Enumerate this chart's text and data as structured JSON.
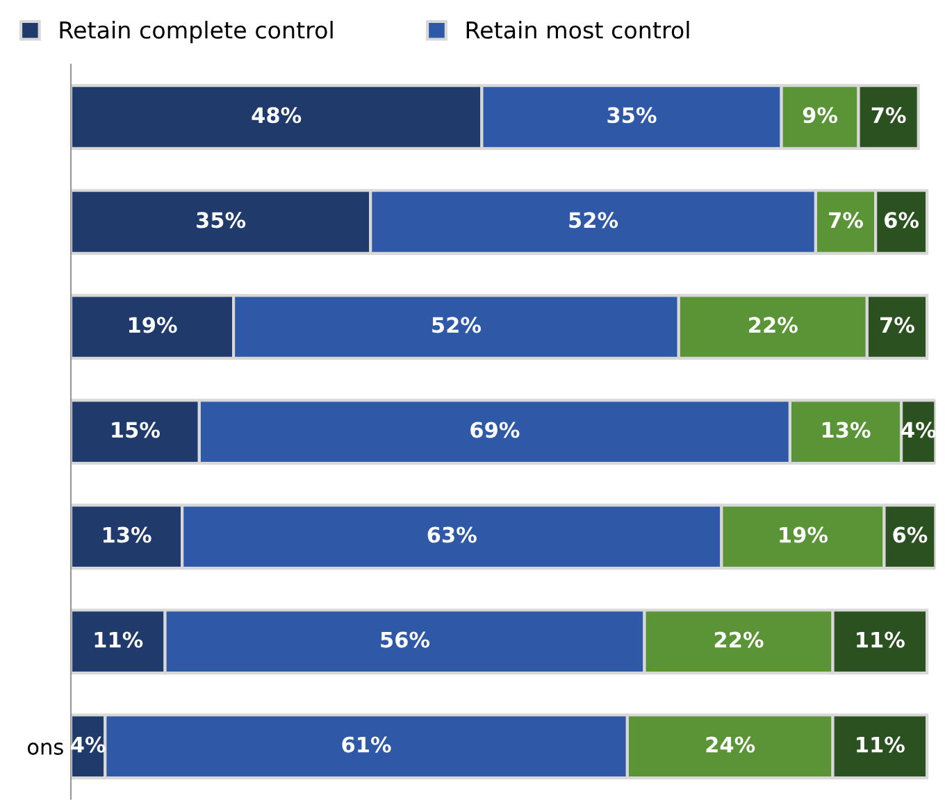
{
  "chart_data": {
    "type": "bar",
    "orientation": "horizontal",
    "stacked": true,
    "categories": [
      null,
      null,
      null,
      null,
      null,
      null,
      "ons"
    ],
    "xlim": [
      0,
      101
    ],
    "tick_labels": "y",
    "legend": "top",
    "grid": false,
    "series": [
      {
        "name": "Retain complete control",
        "color": "#1f3a6b",
        "values": [
          48,
          35,
          19,
          15,
          13,
          11,
          4
        ],
        "value_labels": [
          "48%",
          "35%",
          "19%",
          "15%",
          "13%",
          "11%",
          "4%"
        ]
      },
      {
        "name": "Retain most control",
        "color": "#2f58a6",
        "values": [
          35,
          52,
          52,
          69,
          63,
          56,
          61
        ],
        "value_labels": [
          "35%",
          "52%",
          "52%",
          "69%",
          "63%",
          "56%",
          "61%"
        ]
      },
      {
        "color": "#5a9436",
        "values": [
          9,
          7,
          22,
          13,
          19,
          22,
          24
        ],
        "value_labels": [
          "9%",
          "7%",
          "22%",
          "13%",
          "19%",
          "22%",
          "24%"
        ]
      },
      {
        "color": "#2c5120",
        "values": [
          7,
          6,
          7,
          4,
          6,
          11,
          11
        ],
        "value_labels": [
          "7%",
          "6%",
          "7%",
          "4%",
          "6%",
          "11%",
          "11%"
        ]
      }
    ]
  }
}
